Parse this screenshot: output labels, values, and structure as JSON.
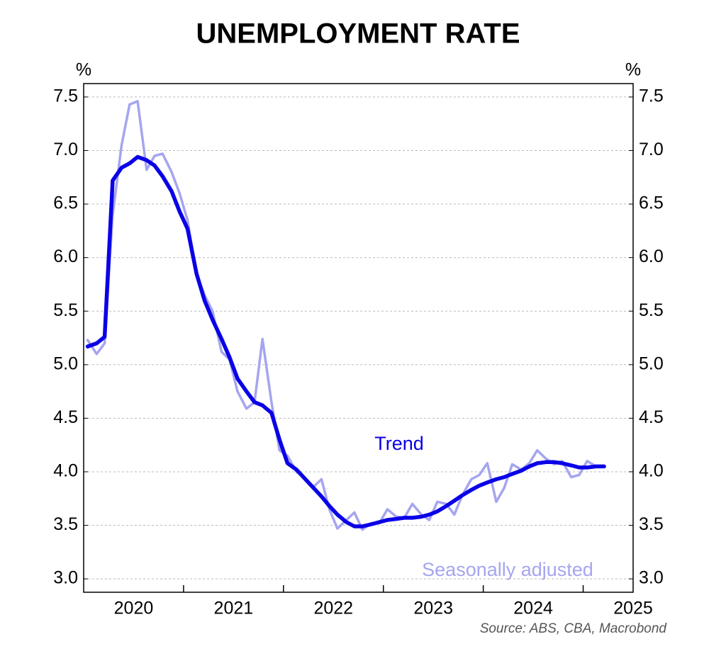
{
  "chart_data": {
    "type": "line",
    "title": "UNEMPLOYMENT RATE",
    "ylabel": "%",
    "source": "Source: ABS, CBA, Macrobond",
    "x": [
      2020.04,
      2020.13,
      2020.21,
      2020.29,
      2020.38,
      2020.46,
      2020.54,
      2020.63,
      2020.71,
      2020.79,
      2020.88,
      2020.96,
      2021.04,
      2021.13,
      2021.21,
      2021.29,
      2021.38,
      2021.46,
      2021.54,
      2021.63,
      2021.71,
      2021.79,
      2021.88,
      2021.96,
      2022.04,
      2022.13,
      2022.21,
      2022.29,
      2022.38,
      2022.46,
      2022.54,
      2022.63,
      2022.71,
      2022.79,
      2022.88,
      2022.96,
      2023.04,
      2023.13,
      2023.21,
      2023.29,
      2023.38,
      2023.46,
      2023.54,
      2023.63,
      2023.71,
      2023.79,
      2023.88,
      2023.96,
      2024.04,
      2024.13,
      2024.21,
      2024.29,
      2024.38,
      2024.46,
      2024.54,
      2024.63,
      2024.71,
      2024.79,
      2024.88,
      2024.96,
      2025.04,
      2025.13,
      2025.21
    ],
    "series": [
      {
        "name": "Seasonally adjusted",
        "color": "#a5a5f0",
        "values": [
          5.23,
          5.1,
          5.2,
          6.4,
          7.05,
          7.43,
          7.46,
          6.82,
          6.95,
          6.97,
          6.8,
          6.6,
          6.35,
          5.85,
          5.65,
          5.5,
          5.12,
          5.05,
          4.75,
          4.59,
          4.65,
          5.24,
          4.65,
          4.2,
          4.15,
          4.0,
          3.95,
          3.85,
          3.93,
          3.65,
          3.47,
          3.55,
          3.62,
          3.46,
          3.52,
          3.52,
          3.65,
          3.58,
          3.57,
          3.7,
          3.6,
          3.55,
          3.72,
          3.7,
          3.6,
          3.78,
          3.93,
          3.97,
          4.08,
          3.72,
          3.85,
          4.07,
          4.02,
          4.08,
          4.2,
          4.12,
          4.07,
          4.1,
          3.95,
          3.97,
          4.1,
          4.05,
          null
        ]
      },
      {
        "name": "Trend",
        "color": "#0a00e6",
        "values": [
          5.17,
          5.2,
          5.26,
          6.72,
          6.84,
          6.88,
          6.94,
          6.91,
          6.86,
          6.76,
          6.62,
          6.43,
          6.27,
          5.85,
          5.6,
          5.42,
          5.24,
          5.07,
          4.87,
          4.75,
          4.65,
          4.62,
          4.55,
          4.3,
          4.08,
          4.02,
          3.94,
          3.86,
          3.77,
          3.68,
          3.6,
          3.53,
          3.49,
          3.49,
          3.51,
          3.53,
          3.55,
          3.56,
          3.57,
          3.57,
          3.58,
          3.6,
          3.63,
          3.68,
          3.73,
          3.78,
          3.83,
          3.87,
          3.9,
          3.93,
          3.95,
          3.98,
          4.01,
          4.05,
          4.08,
          4.09,
          4.09,
          4.08,
          4.06,
          4.04,
          4.04,
          4.05,
          4.05
        ]
      }
    ],
    "xlim": [
      2020,
      2025.5
    ],
    "xticks": [
      {
        "value": 2020.5,
        "label": "2020"
      },
      {
        "value": 2021.5,
        "label": "2021"
      },
      {
        "value": 2022.5,
        "label": "2022"
      },
      {
        "value": 2023.5,
        "label": "2023"
      },
      {
        "value": 2024.5,
        "label": "2024"
      },
      {
        "value": 2025.5,
        "label": "2025"
      }
    ],
    "ylim": [
      2.875,
      7.625
    ],
    "yticks": [
      {
        "value": 3,
        "label": "3.0"
      },
      {
        "value": 3.5,
        "label": "3.5"
      },
      {
        "value": 4,
        "label": "4.0"
      },
      {
        "value": 4.5,
        "label": "4.5"
      },
      {
        "value": 5,
        "label": "5.0"
      },
      {
        "value": 5.5,
        "label": "5.5"
      },
      {
        "value": 6,
        "label": "6.0"
      },
      {
        "value": 6.5,
        "label": "6.5"
      },
      {
        "value": 7,
        "label": "7.0"
      },
      {
        "value": 7.5,
        "label": "7.5"
      }
    ],
    "grid": true
  }
}
